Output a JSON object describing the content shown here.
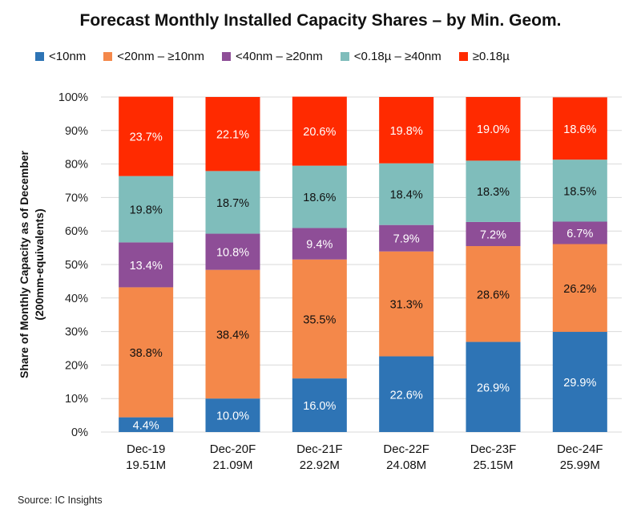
{
  "chart_data": {
    "type": "bar",
    "stacked": true,
    "title": "Forecast Monthly Installed Capacity Shares – by Min. Geom.",
    "ylabel_line1": "Share of Monthly Capacity as of December",
    "ylabel_line2": "(200mm-equivalents)",
    "ylim": [
      0,
      100
    ],
    "yticks": [
      "0%",
      "10%",
      "20%",
      "30%",
      "40%",
      "50%",
      "60%",
      "70%",
      "80%",
      "90%",
      "100%"
    ],
    "grid": true,
    "legend_position": "top",
    "categories": [
      "Dec-19",
      "Dec-20F",
      "Dec-21F",
      "Dec-22F",
      "Dec-23F",
      "Dec-24F"
    ],
    "category_sublabels": [
      "19.51M",
      "21.09M",
      "22.92M",
      "24.08M",
      "25.15M",
      "25.99M"
    ],
    "series": [
      {
        "name": "<10nm",
        "color": "#2E74B5",
        "label_color": "#ffffff",
        "values": [
          4.4,
          10.0,
          16.0,
          22.6,
          26.9,
          29.9
        ]
      },
      {
        "name": "<20nm – ≥10nm",
        "color": "#F4884A",
        "label_color": "#111111",
        "values": [
          38.8,
          38.4,
          35.5,
          31.3,
          28.6,
          26.2
        ]
      },
      {
        "name": "<40nm – ≥20nm",
        "color": "#8E4E97",
        "label_color": "#ffffff",
        "values": [
          13.4,
          10.8,
          9.4,
          7.9,
          7.2,
          6.7
        ]
      },
      {
        "name": "<0.18µ – ≥40nm",
        "color": "#7FBDBB",
        "label_color": "#111111",
        "values": [
          19.8,
          18.7,
          18.6,
          18.4,
          18.3,
          18.5
        ]
      },
      {
        "name": "≥0.18µ",
        "color": "#FF2A00",
        "label_color": "#ffffff",
        "values": [
          23.7,
          22.1,
          20.6,
          19.8,
          19.0,
          18.6
        ]
      }
    ]
  },
  "source": "Source:  IC Insights"
}
